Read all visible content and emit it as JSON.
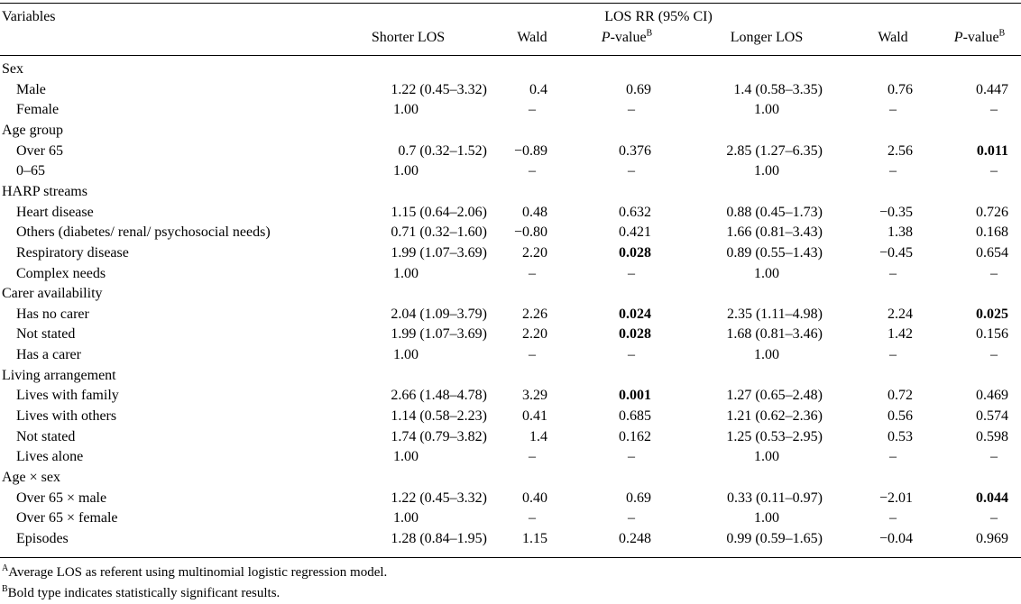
{
  "header": {
    "variables": "Variables",
    "group": "LOS RR (95% CI)",
    "shorter": "Shorter LOS",
    "wald1": "Wald",
    "p_label": "P",
    "p_rest": "-value",
    "p_sup": "B",
    "longer": "Longer LOS",
    "wald2": "Wald"
  },
  "rows": [
    {
      "label": "Sex"
    },
    {
      "label": "Male",
      "sub": true,
      "v": [
        "1.22 (0.45–3.32)",
        "0.4",
        "0.69",
        "1.4 (0.58–3.35)",
        "0.76",
        "0.447"
      ],
      "bold": []
    },
    {
      "label": "Female",
      "sub": true,
      "ref": [
        "1.00",
        "–",
        "–",
        "1.00",
        "–",
        "–"
      ]
    },
    {
      "label": "Age group"
    },
    {
      "label": "Over 65",
      "sub": true,
      "v": [
        "0.7 (0.32–1.52)",
        "−0.89",
        "0.376",
        "2.85 (1.27–6.35)",
        "2.56",
        "0.011"
      ],
      "bold": [
        5
      ]
    },
    {
      "label": "0–65",
      "sub": true,
      "ref": [
        "1.00",
        "–",
        "–",
        "1.00",
        "–",
        "–"
      ]
    },
    {
      "label": "HARP streams"
    },
    {
      "label": "Heart disease",
      "sub": true,
      "v": [
        "1.15 (0.64–2.06)",
        "0.48",
        "0.632",
        "0.88 (0.45–1.73)",
        "−0.35",
        "0.726"
      ],
      "bold": []
    },
    {
      "label": "Others (diabetes/ renal/ psychosocial needs)",
      "sub": true,
      "v": [
        "0.71 (0.32–1.60)",
        "−0.80",
        "0.421",
        "1.66 (0.81–3.43)",
        "1.38",
        "0.168"
      ],
      "bold": []
    },
    {
      "label": "Respiratory disease",
      "sub": true,
      "v": [
        "1.99 (1.07–3.69)",
        "2.20",
        "0.028",
        "0.89 (0.55–1.43)",
        "−0.45",
        "0.654"
      ],
      "bold": [
        2
      ]
    },
    {
      "label": "Complex needs",
      "sub": true,
      "ref": [
        "1.00",
        "–",
        "–",
        "1.00",
        "–",
        "–"
      ]
    },
    {
      "label": "Carer availability"
    },
    {
      "label": "Has no carer",
      "sub": true,
      "v": [
        "2.04 (1.09–3.79)",
        "2.26",
        "0.024",
        "2.35 (1.11–4.98)",
        "2.24",
        "0.025"
      ],
      "bold": [
        2,
        5
      ]
    },
    {
      "label": "Not stated",
      "sub": true,
      "v": [
        "1.99 (1.07–3.69)",
        "2.20",
        "0.028",
        "1.68 (0.81–3.46)",
        "1.42",
        "0.156"
      ],
      "bold": [
        2
      ]
    },
    {
      "label": "Has a carer",
      "sub": true,
      "ref": [
        "1.00",
        "–",
        "–",
        "1.00",
        "–",
        "–"
      ]
    },
    {
      "label": "Living arrangement"
    },
    {
      "label": "Lives with family",
      "sub": true,
      "v": [
        "2.66 (1.48–4.78)",
        "3.29",
        "0.001",
        "1.27 (0.65–2.48)",
        "0.72",
        "0.469"
      ],
      "bold": [
        2
      ]
    },
    {
      "label": "Lives with others",
      "sub": true,
      "v": [
        "1.14 (0.58–2.23)",
        "0.41",
        "0.685",
        "1.21 (0.62–2.36)",
        "0.56",
        "0.574"
      ],
      "bold": []
    },
    {
      "label": "Not stated",
      "sub": true,
      "v": [
        "1.74 (0.79–3.82)",
        "1.4",
        "0.162",
        "1.25 (0.53–2.95)",
        "0.53",
        "0.598"
      ],
      "bold": []
    },
    {
      "label": "Lives alone",
      "sub": true,
      "ref": [
        "1.00",
        "–",
        "–",
        "1.00",
        "–",
        "–"
      ]
    },
    {
      "label": "Age × sex"
    },
    {
      "label": "Over 65 × male",
      "sub": true,
      "v": [
        "1.22 (0.45–3.32)",
        "0.40",
        "0.69",
        "0.33 (0.11–0.97)",
        "−2.01",
        "0.044"
      ],
      "bold": [
        5
      ]
    },
    {
      "label": "Over 65 × female",
      "sub": true,
      "ref": [
        "1.00",
        "–",
        "–",
        "1.00",
        "–",
        "–"
      ]
    },
    {
      "label": "Episodes",
      "sub": true,
      "v": [
        "1.28 (0.84–1.95)",
        "1.15",
        "0.248",
        "0.99 (0.59–1.65)",
        "−0.04",
        "0.969"
      ],
      "bold": []
    }
  ],
  "footnotes": [
    {
      "sup": "A",
      "text": "Average LOS as referent using multinomial logistic regression model."
    },
    {
      "sup": "B",
      "text": "Bold type indicates statistically significant results."
    }
  ]
}
